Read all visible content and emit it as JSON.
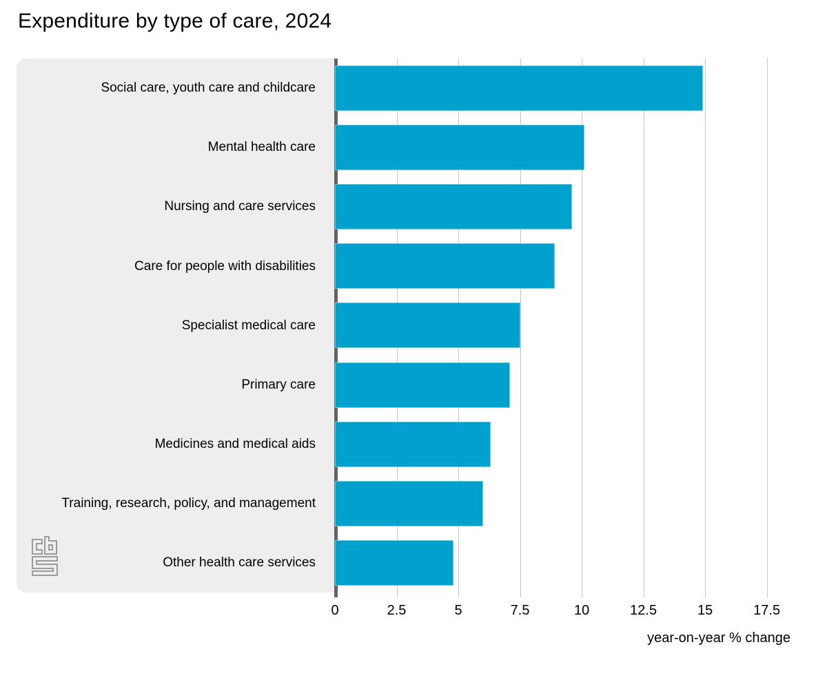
{
  "title": "Expenditure by type of care, 2024",
  "chart_data": {
    "type": "bar",
    "orientation": "horizontal",
    "title": "Expenditure by type of care, 2024",
    "categories": [
      "Social care, youth care and childcare",
      "Mental health care",
      "Nursing and care services",
      "Care for people with disabilities",
      "Specialist medical care",
      "Primary care",
      "Medicines and medical aids",
      "Training, research, policy, and management",
      "Other health care services"
    ],
    "values": [
      14.9,
      10.1,
      9.6,
      8.9,
      7.5,
      7.1,
      6.3,
      6.0,
      4.8
    ],
    "xlabel": "year-on-year % change",
    "ylabel": "",
    "xlim": [
      0,
      18.85
    ],
    "xticks": [
      0,
      2.5,
      5,
      7.5,
      10,
      12.5,
      15,
      17.5
    ],
    "xtick_labels": [
      "0",
      "2.5",
      "5",
      "7.5",
      "10",
      "12.5",
      "15",
      "17.5"
    ],
    "grid": true,
    "legend": "none",
    "bar_color": "#00a1cd",
    "label_panel_color": "#eeeeee",
    "axis_line_color": "#636363",
    "gridline_color": "#c4c4c4"
  },
  "branding": {
    "logo": "cbs-logo",
    "logo_color": "#9b9b9b"
  }
}
